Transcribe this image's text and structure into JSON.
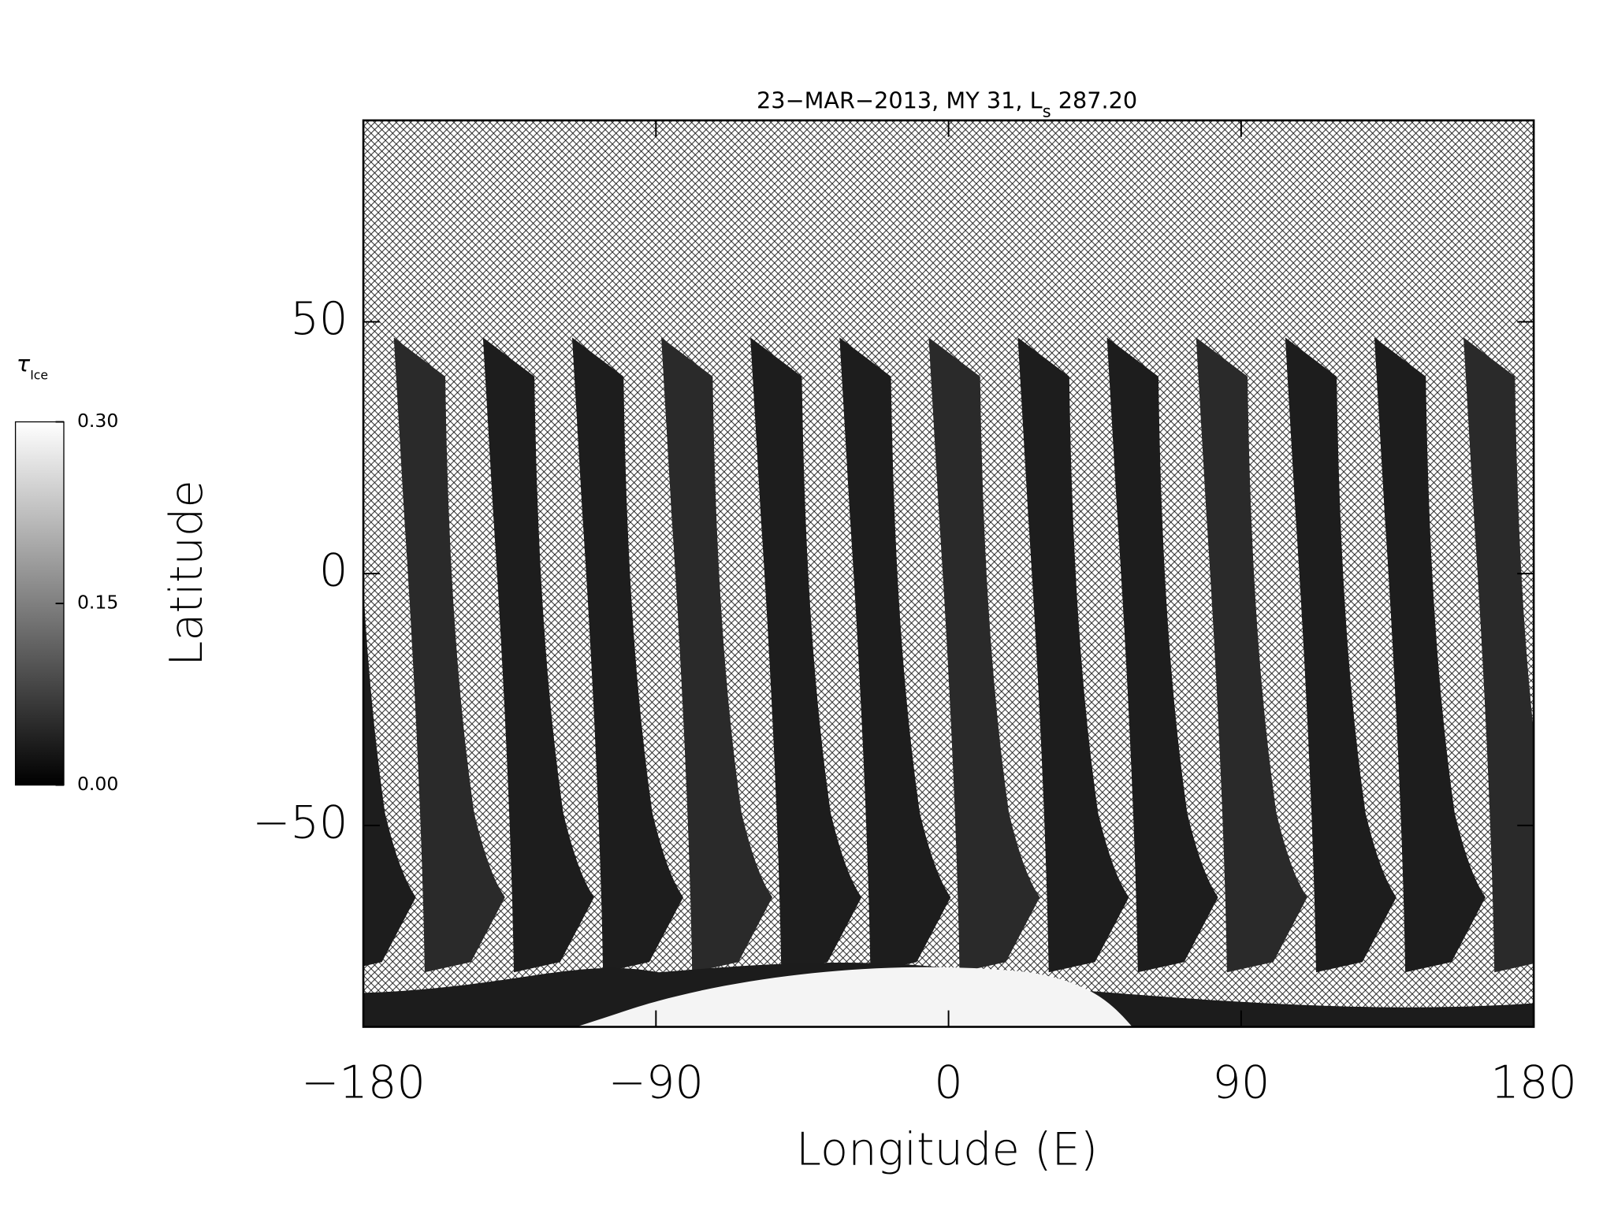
{
  "chart_data": {
    "type": "map",
    "title_prefix": "23−MAR−2013, MY 31,  L",
    "title_subscript": "s",
    "title_suffix": " 287.20",
    "x_label": "Longitude (E)",
    "y_label": "Latitude",
    "xlim": [
      -180,
      180
    ],
    "ylim": [
      -90,
      90
    ],
    "xticks": [
      {
        "value": -180,
        "label": "−180"
      },
      {
        "value": -90,
        "label": "−90"
      },
      0,
      90,
      180
    ],
    "yticks": [
      {
        "value": -50,
        "label": "−50"
      },
      0,
      50
    ],
    "colorbar": {
      "label": "τ",
      "label_subscript": "Ice",
      "lim": [
        0,
        0.3
      ],
      "ticks": [
        {
          "value": 0,
          "label": "0.00"
        },
        {
          "value": 0.15,
          "label": "0.15"
        },
        {
          "value": 0.3,
          "label": "0.30"
        }
      ]
    }
  }
}
